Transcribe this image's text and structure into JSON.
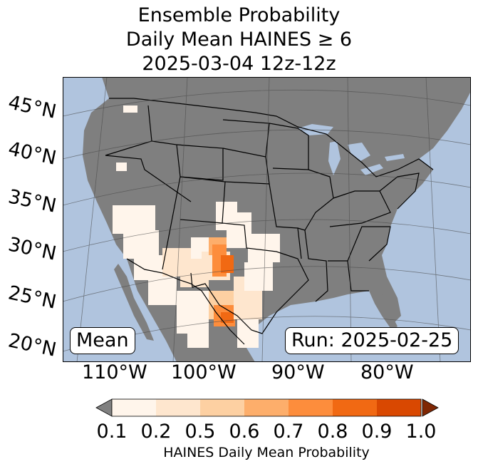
{
  "title": {
    "line1": "Ensemble Probability",
    "line2": "Daily Mean HAINES ≥ 6",
    "line3": "2025-03-04 12z-12z"
  },
  "map": {
    "lat_labels": [
      "45°N",
      "40°N",
      "35°N",
      "30°N",
      "25°N",
      "20°N"
    ],
    "lon_labels": [
      "110°W",
      "100°W",
      "90°W",
      "80°W"
    ],
    "stat_label": "Mean",
    "run_label": "Run: 2025-02-25",
    "colors": {
      "ocean": "#b0c4de",
      "land": "#7f7f7f",
      "border": "#000000",
      "graticule": "#444444"
    }
  },
  "colorbar": {
    "label": "HAINES Daily Mean Probability",
    "ticks": [
      "0.1",
      "0.2",
      "0.5",
      "0.6",
      "0.7",
      "0.8",
      "0.9",
      "1.0"
    ],
    "colors": [
      "#fff5eb",
      "#fee6ce",
      "#fdd0a2",
      "#fdae6b",
      "#fd8d3c",
      "#f16913",
      "#d94801",
      "#a63603"
    ],
    "under_color": "#808080",
    "over_color": "#7f2704"
  }
}
